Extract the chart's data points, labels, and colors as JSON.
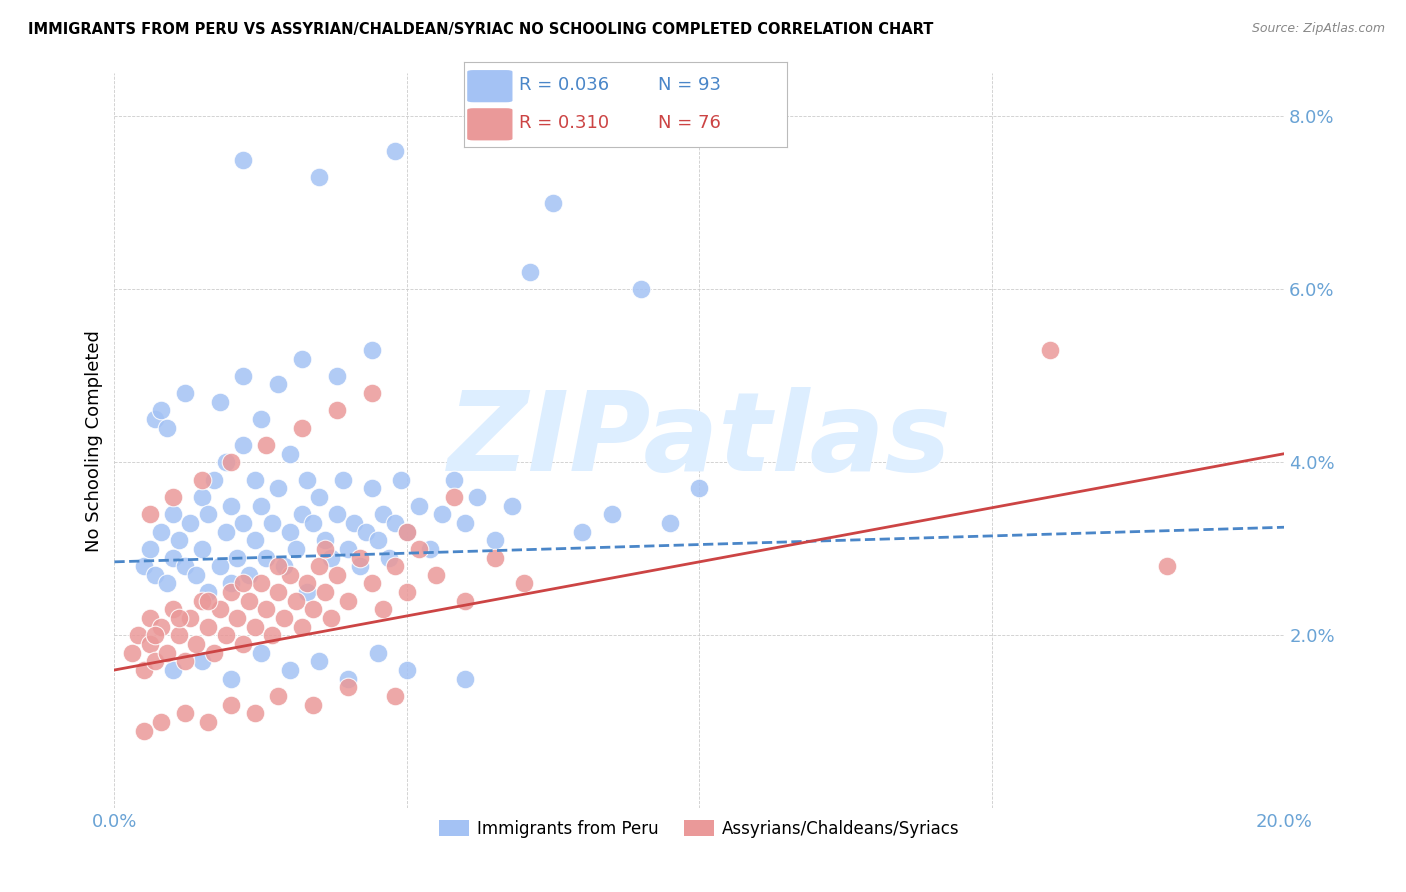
{
  "title": "IMMIGRANTS FROM PERU VS ASSYRIAN/CHALDEAN/SYRIAC NO SCHOOLING COMPLETED CORRELATION CHART",
  "source": "Source: ZipAtlas.com",
  "ylabel": "No Schooling Completed",
  "xlabel_blue": "Immigrants from Peru",
  "xlabel_pink": "Assyrians/Chaldeans/Syriacs",
  "xlim": [
    0.0,
    0.2
  ],
  "ylim": [
    0.0,
    0.085
  ],
  "xticks": [
    0.0,
    0.05,
    0.1,
    0.15,
    0.2
  ],
  "yticks": [
    0.0,
    0.02,
    0.04,
    0.06,
    0.08
  ],
  "blue_R": "0.036",
  "blue_N": "93",
  "pink_R": "0.310",
  "pink_N": "76",
  "blue_color": "#a4c2f4",
  "pink_color": "#ea9999",
  "blue_line_color": "#4a86c8",
  "pink_line_color": "#cc4444",
  "axis_label_color": "#6aa3d5",
  "title_color": "#000000",
  "watermark_color": "#ddeeff",
  "blue_line_x0": 0.0,
  "blue_line_x1": 0.2,
  "blue_line_y0": 0.0285,
  "blue_line_y1": 0.0325,
  "pink_line_x0": 0.0,
  "pink_line_x1": 0.2,
  "pink_line_y0": 0.016,
  "pink_line_y1": 0.041,
  "blue_x": [
    0.005,
    0.006,
    0.007,
    0.008,
    0.009,
    0.01,
    0.01,
    0.011,
    0.012,
    0.013,
    0.014,
    0.015,
    0.015,
    0.016,
    0.016,
    0.017,
    0.018,
    0.019,
    0.019,
    0.02,
    0.02,
    0.021,
    0.022,
    0.022,
    0.023,
    0.024,
    0.024,
    0.025,
    0.025,
    0.026,
    0.027,
    0.028,
    0.029,
    0.03,
    0.03,
    0.031,
    0.032,
    0.033,
    0.033,
    0.034,
    0.035,
    0.036,
    0.037,
    0.038,
    0.039,
    0.04,
    0.041,
    0.042,
    0.043,
    0.044,
    0.045,
    0.046,
    0.047,
    0.048,
    0.049,
    0.05,
    0.052,
    0.054,
    0.056,
    0.058,
    0.06,
    0.062,
    0.065,
    0.068,
    0.071,
    0.075,
    0.08,
    0.085,
    0.09,
    0.095,
    0.01,
    0.015,
    0.02,
    0.025,
    0.03,
    0.035,
    0.04,
    0.045,
    0.05,
    0.06,
    0.007,
    0.008,
    0.009,
    0.012,
    0.018,
    0.022,
    0.028,
    0.032,
    0.038,
    0.044,
    0.022,
    0.035,
    0.048,
    0.1
  ],
  "blue_y": [
    0.028,
    0.03,
    0.027,
    0.032,
    0.026,
    0.029,
    0.034,
    0.031,
    0.028,
    0.033,
    0.027,
    0.036,
    0.03,
    0.034,
    0.025,
    0.038,
    0.028,
    0.032,
    0.04,
    0.026,
    0.035,
    0.029,
    0.033,
    0.042,
    0.027,
    0.038,
    0.031,
    0.035,
    0.045,
    0.029,
    0.033,
    0.037,
    0.028,
    0.032,
    0.041,
    0.03,
    0.034,
    0.038,
    0.025,
    0.033,
    0.036,
    0.031,
    0.029,
    0.034,
    0.038,
    0.03,
    0.033,
    0.028,
    0.032,
    0.037,
    0.031,
    0.034,
    0.029,
    0.033,
    0.038,
    0.032,
    0.035,
    0.03,
    0.034,
    0.038,
    0.033,
    0.036,
    0.031,
    0.035,
    0.062,
    0.07,
    0.032,
    0.034,
    0.06,
    0.033,
    0.016,
    0.017,
    0.015,
    0.018,
    0.016,
    0.017,
    0.015,
    0.018,
    0.016,
    0.015,
    0.045,
    0.046,
    0.044,
    0.048,
    0.047,
    0.05,
    0.049,
    0.052,
    0.05,
    0.053,
    0.075,
    0.073,
    0.076,
    0.037
  ],
  "pink_x": [
    0.003,
    0.004,
    0.005,
    0.006,
    0.006,
    0.007,
    0.008,
    0.009,
    0.01,
    0.011,
    0.012,
    0.013,
    0.014,
    0.015,
    0.016,
    0.017,
    0.018,
    0.019,
    0.02,
    0.021,
    0.022,
    0.023,
    0.024,
    0.025,
    0.026,
    0.027,
    0.028,
    0.029,
    0.03,
    0.031,
    0.032,
    0.033,
    0.034,
    0.035,
    0.036,
    0.037,
    0.038,
    0.04,
    0.042,
    0.044,
    0.046,
    0.048,
    0.05,
    0.052,
    0.055,
    0.06,
    0.065,
    0.07,
    0.16,
    0.18,
    0.005,
    0.008,
    0.012,
    0.016,
    0.02,
    0.024,
    0.028,
    0.034,
    0.04,
    0.048,
    0.006,
    0.01,
    0.015,
    0.02,
    0.026,
    0.032,
    0.038,
    0.044,
    0.05,
    0.058,
    0.007,
    0.011,
    0.016,
    0.022,
    0.028,
    0.036
  ],
  "pink_y": [
    0.018,
    0.02,
    0.016,
    0.022,
    0.019,
    0.017,
    0.021,
    0.018,
    0.023,
    0.02,
    0.017,
    0.022,
    0.019,
    0.024,
    0.021,
    0.018,
    0.023,
    0.02,
    0.025,
    0.022,
    0.019,
    0.024,
    0.021,
    0.026,
    0.023,
    0.02,
    0.025,
    0.022,
    0.027,
    0.024,
    0.021,
    0.026,
    0.023,
    0.028,
    0.025,
    0.022,
    0.027,
    0.024,
    0.029,
    0.026,
    0.023,
    0.028,
    0.025,
    0.03,
    0.027,
    0.024,
    0.029,
    0.026,
    0.053,
    0.028,
    0.009,
    0.01,
    0.011,
    0.01,
    0.012,
    0.011,
    0.013,
    0.012,
    0.014,
    0.013,
    0.034,
    0.036,
    0.038,
    0.04,
    0.042,
    0.044,
    0.046,
    0.048,
    0.032,
    0.036,
    0.02,
    0.022,
    0.024,
    0.026,
    0.028,
    0.03
  ]
}
